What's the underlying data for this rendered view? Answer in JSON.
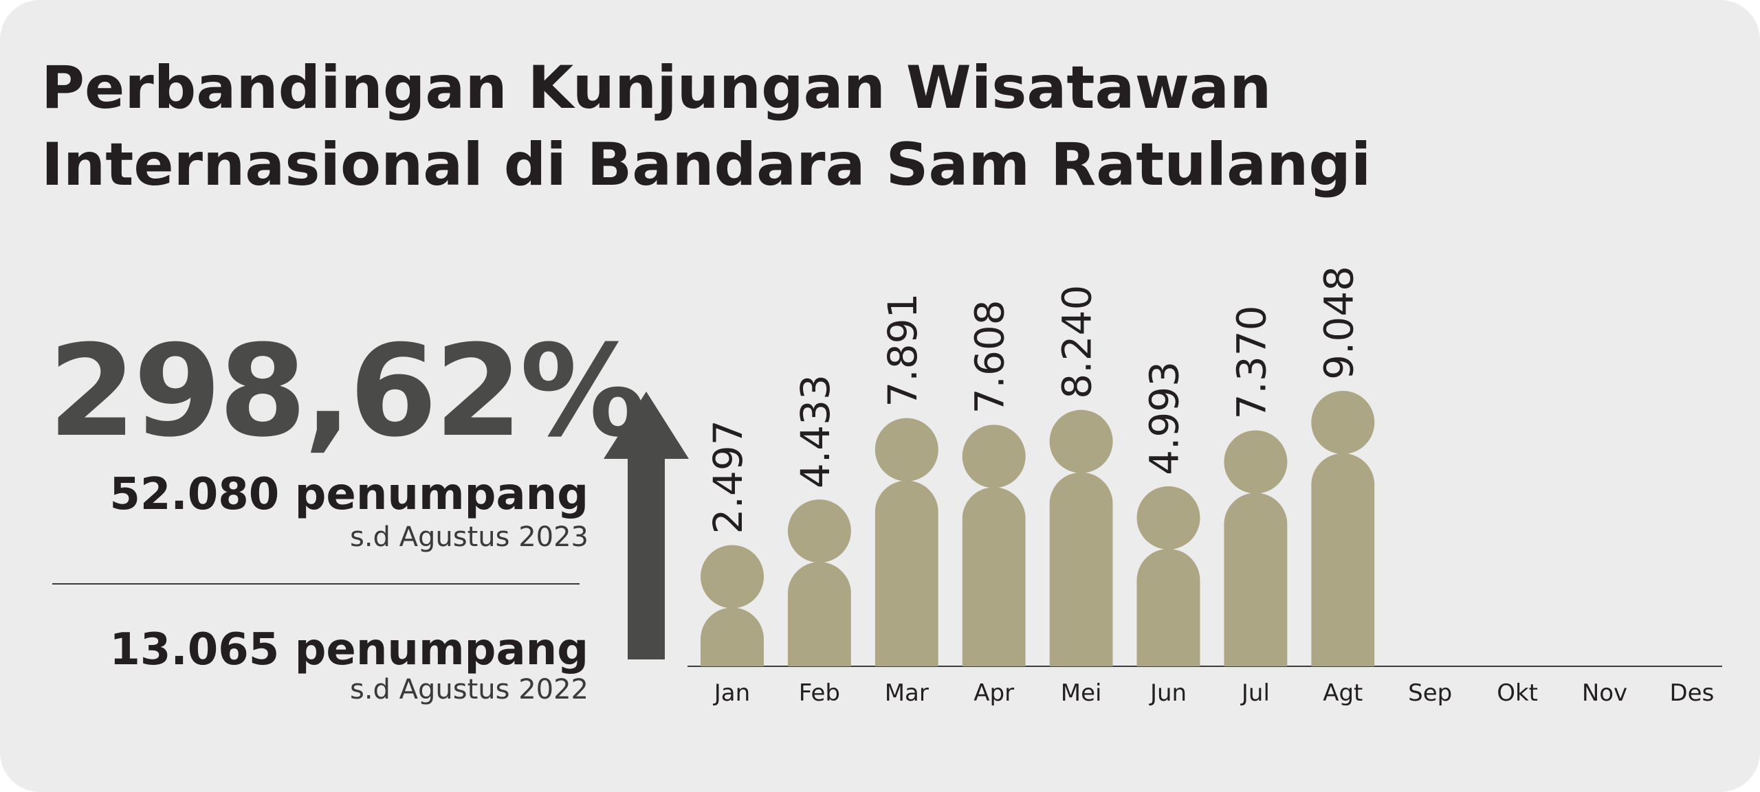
{
  "title": {
    "line1": "Perbandingan Kunjungan Wisatawan",
    "line2": "Internasional di Bandara Sam Ratulangi"
  },
  "summary": {
    "growth_percent": "298,62%",
    "current": {
      "value": "52.080 penumpang",
      "note": "s.d Agustus 2023"
    },
    "previous": {
      "value": "13.065 penumpang",
      "note": "s.d Agustus 2022"
    }
  },
  "icons": {
    "increase": "up-arrow-icon"
  },
  "colors": {
    "background": "#ececec",
    "bar": "#aca684",
    "arrow": "#4a4a48",
    "text": "#231f20"
  },
  "chart_data": {
    "type": "bar",
    "categories": [
      "Jan",
      "Feb",
      "Mar",
      "Apr",
      "Mei",
      "Jun",
      "Jul",
      "Agt",
      "Sep",
      "Okt",
      "Nov",
      "Des"
    ],
    "values": [
      2497,
      4433,
      7891,
      7608,
      8240,
      4993,
      7370,
      9048,
      null,
      null,
      null,
      null
    ],
    "value_labels": [
      "2.497",
      "4.433",
      "7.891",
      "7.608",
      "8.240",
      "4.993",
      "7.370",
      "9.048",
      "",
      "",
      "",
      ""
    ],
    "title": "",
    "xlabel": "",
    "ylabel": "",
    "ylim": [
      0,
      9048
    ],
    "grid": false,
    "legend": "none"
  }
}
